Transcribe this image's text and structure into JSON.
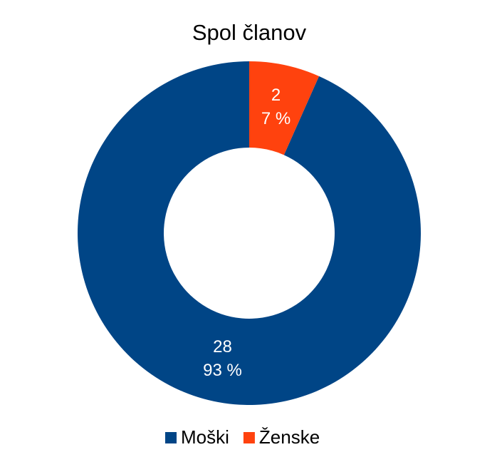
{
  "chart_data": {
    "type": "donut",
    "title": "Spol članov",
    "categories": [
      "Moški",
      "Ženske"
    ],
    "values": [
      28,
      2
    ],
    "colors": [
      "#004586",
      "#ff420e"
    ],
    "percent_labels": [
      "93 %",
      "7 %"
    ],
    "legend": "bottom"
  }
}
